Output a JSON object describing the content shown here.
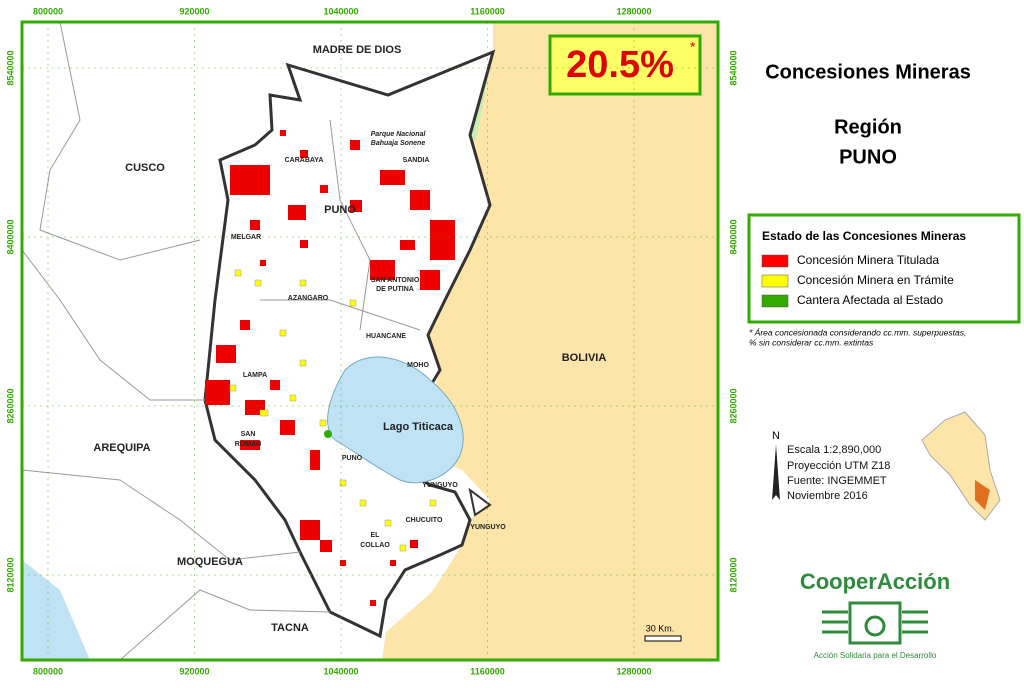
{
  "frame": {
    "x_ticks": [
      800000,
      920000,
      1040000,
      1160000,
      1280000
    ],
    "y_ticks": [
      8540000,
      8400000,
      8260000,
      8120000
    ]
  },
  "map_labels": [
    "MADRE DE DIOS",
    "CUSCO",
    "AREQUIPA",
    "MOQUEGUA",
    "TACNA",
    "BOLIVIA",
    "Lago Titicaca",
    "Parque Nacional",
    "Bahuaja Sonene",
    "CARABAYA",
    "SANDIA",
    "PUNO",
    "MELGAR",
    "AZANGARO",
    "SAN ANTONIO",
    "DE PUTINA",
    "HUANCANE",
    "MOHO",
    "LAMPA",
    "SAN",
    "ROMAN",
    "PUNO",
    "YUNGUYO",
    "CHUCUITO",
    "YUNGUYO",
    "EL",
    "COLLAO"
  ],
  "badge": {
    "value": "20.5%",
    "asterisk": "*"
  },
  "header": {
    "title": "Concesiones Mineras",
    "region_label": "Región",
    "region": "PUNO"
  },
  "legend": {
    "title": "Estado de las Concesiones Mineras",
    "items": [
      {
        "label": "Concesión Minera Titulada",
        "color": "#ff0000"
      },
      {
        "label": "Concesión Minera en Trámite",
        "color": "#ffff00"
      },
      {
        "label": "Cantera Afectada al Estado",
        "color": "#33aa00"
      }
    ]
  },
  "footnote": [
    "* Área concesionada considerando cc.mm. superpuestas,",
    "% sin considerar cc.mm. extintas"
  ],
  "north": "N",
  "info": [
    "Escala 1:2,890,000",
    "Proyección UTM Z18",
    "Fuente: INGEMMET",
    "Noviembre 2016"
  ],
  "scale_bar": "30 Km.",
  "logo": {
    "name": "CooperAcción",
    "tagline": "Acción Solidaria para el Desarrollo"
  }
}
